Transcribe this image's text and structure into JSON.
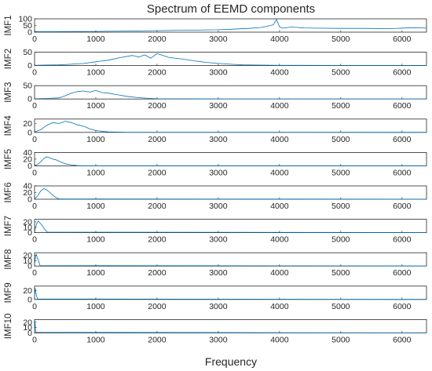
{
  "figure": {
    "title": "Spectrum of EEMD components",
    "xlabel": "Frequency",
    "line_color": "#0072BD"
  },
  "chart_data": [
    {
      "type": "line",
      "ylabel": "IMF1",
      "xlim": [
        0,
        6400
      ],
      "ylim": [
        0,
        100
      ],
      "xticks": [
        0,
        1000,
        2000,
        3000,
        4000,
        5000,
        6000
      ],
      "yticks": [
        0,
        50,
        100
      ],
      "series": [
        {
          "x": [
            0,
            100,
            300,
            600,
            1000,
            1500,
            2000,
            2500,
            3000,
            3200,
            3500,
            3700,
            3900,
            3950,
            4000,
            4050,
            4200,
            4400,
            4600,
            5000,
            5400,
            5800,
            6200,
            6400
          ],
          "values": [
            5,
            4,
            4,
            5,
            5,
            8,
            12,
            15,
            18,
            22,
            28,
            35,
            55,
            95,
            40,
            30,
            38,
            32,
            30,
            28,
            28,
            26,
            34,
            30
          ]
        }
      ]
    },
    {
      "type": "line",
      "ylabel": "IMF2",
      "xlim": [
        0,
        6400
      ],
      "ylim": [
        0,
        50
      ],
      "xticks": [
        0,
        1000,
        2000,
        3000,
        4000,
        5000,
        6000
      ],
      "yticks": [
        0,
        50
      ],
      "series": [
        {
          "x": [
            0,
            200,
            400,
            600,
            800,
            1000,
            1200,
            1400,
            1600,
            1700,
            1800,
            1900,
            2000,
            2200,
            2400,
            2600,
            2800,
            3000,
            3200,
            3400,
            3600,
            4000,
            5000,
            6400
          ],
          "values": [
            1,
            2,
            3,
            5,
            8,
            14,
            20,
            30,
            38,
            32,
            40,
            28,
            45,
            30,
            25,
            18,
            12,
            8,
            5,
            3,
            2,
            1,
            0.5,
            0.5
          ]
        }
      ]
    },
    {
      "type": "line",
      "ylabel": "IMF3",
      "xlim": [
        0,
        6400
      ],
      "ylim": [
        0,
        50
      ],
      "xticks": [
        0,
        1000,
        2000,
        3000,
        4000,
        5000,
        6000
      ],
      "yticks": [
        0,
        50
      ],
      "series": [
        {
          "x": [
            0,
            200,
            400,
            500,
            600,
            700,
            800,
            900,
            1000,
            1100,
            1200,
            1300,
            1400,
            1500,
            1700,
            1900,
            2000,
            2400,
            3000,
            6400
          ],
          "values": [
            1,
            2,
            4,
            12,
            22,
            28,
            30,
            26,
            32,
            24,
            22,
            18,
            14,
            10,
            5,
            2,
            1,
            0.5,
            0.3,
            0.3
          ]
        }
      ]
    },
    {
      "type": "line",
      "ylabel": "IMF4",
      "xlim": [
        0,
        6400
      ],
      "ylim": [
        0,
        30
      ],
      "xticks": [
        0,
        1000,
        2000,
        3000,
        4000,
        5000,
        6000
      ],
      "yticks": [
        0,
        20
      ],
      "series": [
        {
          "x": [
            0,
            100,
            200,
            300,
            400,
            500,
            600,
            700,
            800,
            900,
            1000,
            1200,
            1500,
            6400
          ],
          "values": [
            1,
            6,
            16,
            22,
            20,
            25,
            22,
            17,
            14,
            8,
            4,
            1,
            0.3,
            0.2
          ]
        }
      ]
    },
    {
      "type": "line",
      "ylabel": "IMF5",
      "xlim": [
        0,
        6400
      ],
      "ylim": [
        0,
        40
      ],
      "xticks": [
        0,
        1000,
        2000,
        3000,
        4000,
        5000,
        6000
      ],
      "yticks": [
        0,
        20,
        40
      ],
      "series": [
        {
          "x": [
            0,
            50,
            100,
            150,
            200,
            250,
            300,
            350,
            400,
            450,
            500,
            600,
            700,
            800,
            6400
          ],
          "values": [
            1,
            4,
            12,
            22,
            27,
            24,
            20,
            18,
            14,
            10,
            6,
            3,
            1,
            0.3,
            0.2
          ]
        }
      ]
    },
    {
      "type": "line",
      "ylabel": "IMF6",
      "xlim": [
        0,
        6400
      ],
      "ylim": [
        0,
        40
      ],
      "xticks": [
        0,
        1000,
        2000,
        3000,
        4000,
        5000,
        6000
      ],
      "yticks": [
        0,
        20,
        40
      ],
      "series": [
        {
          "x": [
            0,
            50,
            100,
            150,
            200,
            250,
            300,
            350,
            400,
            6400
          ],
          "values": [
            1,
            10,
            25,
            32,
            28,
            20,
            12,
            5,
            1,
            0.2
          ]
        }
      ]
    },
    {
      "type": "line",
      "ylabel": "IMF7",
      "xlim": [
        0,
        6400
      ],
      "ylim": [
        0,
        25
      ],
      "xticks": [
        0,
        1000,
        2000,
        3000,
        4000,
        5000,
        6000
      ],
      "yticks": [
        0,
        10,
        20
      ],
      "series": [
        {
          "x": [
            0,
            30,
            60,
            90,
            120,
            150,
            180,
            210,
            6400
          ],
          "values": [
            2,
            15,
            22,
            18,
            14,
            9,
            4,
            1,
            0.2
          ]
        }
      ]
    },
    {
      "type": "line",
      "ylabel": "IMF8",
      "xlim": [
        0,
        6400
      ],
      "ylim": [
        0,
        25
      ],
      "xticks": [
        0,
        1000,
        2000,
        3000,
        4000,
        5000,
        6000
      ],
      "yticks": [
        0,
        10,
        20
      ],
      "series": [
        {
          "x": [
            0,
            15,
            30,
            45,
            60,
            75,
            90,
            6400
          ],
          "values": [
            3,
            18,
            22,
            15,
            12,
            6,
            1,
            0.2
          ]
        }
      ]
    },
    {
      "type": "line",
      "ylabel": "IMF9",
      "xlim": [
        0,
        6400
      ],
      "ylim": [
        0,
        30
      ],
      "xticks": [
        0,
        1000,
        2000,
        3000,
        4000,
        5000,
        6000
      ],
      "yticks": [
        0,
        20
      ],
      "series": [
        {
          "x": [
            0,
            10,
            20,
            30,
            40,
            50,
            6400
          ],
          "values": [
            5,
            25,
            18,
            10,
            5,
            1,
            0.2
          ]
        }
      ]
    },
    {
      "type": "line",
      "ylabel": "IMF10",
      "xlim": [
        0,
        6400
      ],
      "ylim": [
        0,
        25
      ],
      "xticks": [
        0,
        1000,
        2000,
        3000,
        4000,
        5000,
        6000
      ],
      "yticks": [
        0,
        10,
        20
      ],
      "series": [
        {
          "x": [
            0,
            5,
            10,
            15,
            20,
            25,
            6400
          ],
          "values": [
            8,
            22,
            15,
            8,
            3,
            1,
            0.2
          ]
        }
      ]
    }
  ]
}
